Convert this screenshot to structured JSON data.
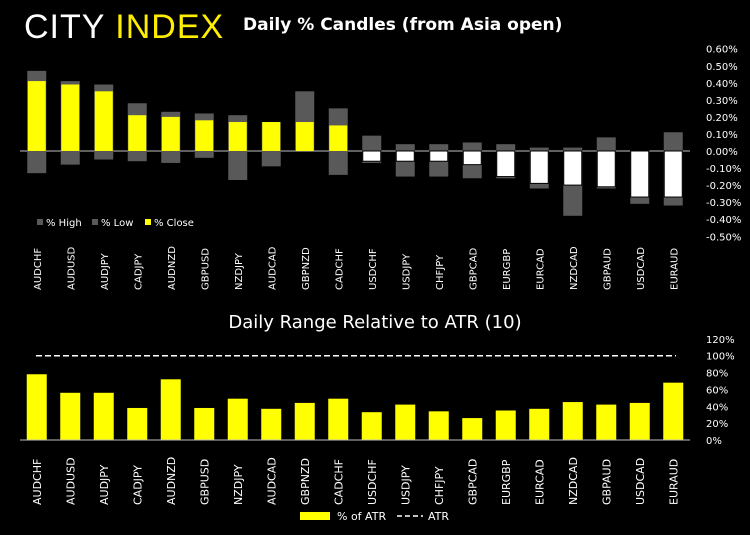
{
  "header": {
    "logo_part1": "CITY",
    "logo_part2": "INDEX",
    "logo_color": "#ffee00"
  },
  "chart_data": [
    {
      "type": "bar",
      "title": "Daily % Candles (from Asia open)",
      "categories": [
        "AUDCHF",
        "AUDUSD",
        "AUDJPY",
        "CADJPY",
        "AUDNZD",
        "GBPUSD",
        "NZDJPY",
        "AUDCAD",
        "GBPNZD",
        "CADCHF",
        "USDCHF",
        "USDJPY",
        "CHFJPY",
        "GBPCAD",
        "EURGBP",
        "EURCAD",
        "NZDCAD",
        "GBPAUD",
        "USDCAD",
        "EURAUD"
      ],
      "series": [
        {
          "name": "% High",
          "values": [
            0.47,
            0.41,
            0.39,
            0.28,
            0.23,
            0.22,
            0.21,
            0.17,
            0.35,
            0.25,
            0.09,
            0.04,
            0.04,
            0.05,
            0.04,
            0.02,
            0.02,
            0.08,
            0.0,
            0.11
          ]
        },
        {
          "name": "% Low",
          "values": [
            -0.13,
            -0.08,
            -0.05,
            -0.06,
            -0.07,
            -0.04,
            -0.17,
            -0.09,
            0.0,
            -0.14,
            -0.07,
            -0.15,
            -0.15,
            -0.16,
            -0.16,
            -0.22,
            -0.38,
            -0.22,
            -0.31,
            -0.32
          ]
        },
        {
          "name": "% Close",
          "values": [
            0.41,
            0.39,
            0.35,
            0.21,
            0.2,
            0.18,
            0.17,
            0.17,
            0.17,
            0.15,
            -0.06,
            -0.06,
            -0.06,
            -0.08,
            -0.15,
            -0.19,
            -0.2,
            -0.21,
            -0.27,
            -0.27
          ]
        }
      ],
      "ylim": [
        -0.5,
        0.6
      ],
      "yticks": [
        "0.60%",
        "0.50%",
        "0.40%",
        "0.30%",
        "0.20%",
        "0.10%",
        "0.00%",
        "-0.10%",
        "-0.20%",
        "-0.30%",
        "-0.40%",
        "-0.50%"
      ],
      "legend_position": "bottom-left",
      "colors": {
        "range": "#595959",
        "up": "#ffff00",
        "down": "#ffffff"
      }
    },
    {
      "type": "bar",
      "title": "Daily Range Relative to ATR (10)",
      "categories": [
        "AUDCHF",
        "AUDUSD",
        "AUDJPY",
        "CADJPY",
        "AUDNZD",
        "GBPUSD",
        "NZDJPY",
        "AUDCAD",
        "GBPNZD",
        "CADCHF",
        "USDCHF",
        "USDJPY",
        "CHFJPY",
        "GBPCAD",
        "EURGBP",
        "EURCAD",
        "NZDCAD",
        "GBPAUD",
        "USDCAD",
        "EURAUD"
      ],
      "series": [
        {
          "name": "% of ATR",
          "values": [
            78,
            56,
            56,
            38,
            72,
            38,
            49,
            37,
            44,
            49,
            33,
            42,
            34,
            26,
            35,
            37,
            45,
            42,
            44,
            68
          ]
        },
        {
          "name": "ATR",
          "values": [
            100,
            100,
            100,
            100,
            100,
            100,
            100,
            100,
            100,
            100,
            100,
            100,
            100,
            100,
            100,
            100,
            100,
            100,
            100,
            100
          ]
        }
      ],
      "ylim": [
        0,
        120
      ],
      "yticks": [
        "120%",
        "100%",
        "80%",
        "60%",
        "40%",
        "20%",
        "0%"
      ],
      "legend_position": "bottom-center",
      "colors": {
        "bar": "#ffff00",
        "atr": "#ffffff"
      }
    }
  ]
}
